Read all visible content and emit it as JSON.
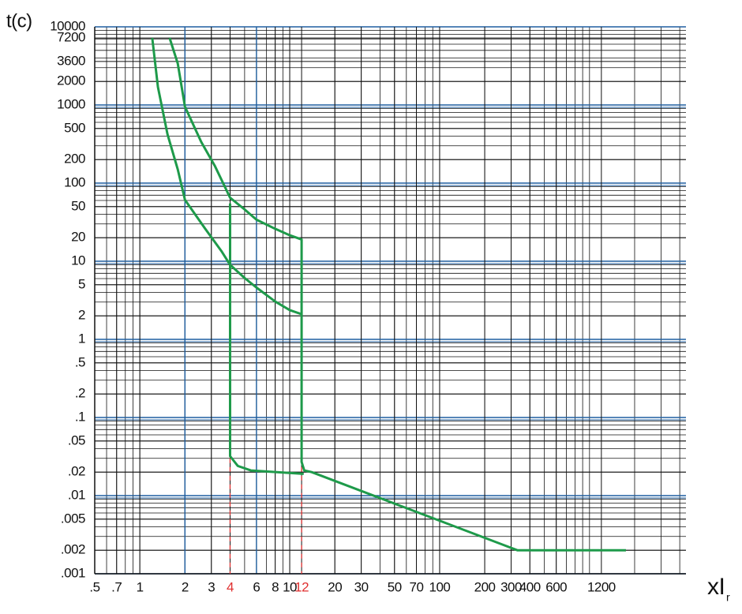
{
  "chart_data": {
    "type": "line",
    "y_label": "t(c)",
    "x_label": "xI",
    "x_label_sub": "r",
    "x_log": true,
    "y_log": true,
    "grid": true,
    "xlim": [
      0.5,
      4400
    ],
    "ylim": [
      0.001,
      10000
    ],
    "xticks": [
      {
        "value": 0.5,
        "label": ".5"
      },
      {
        "value": 0.7,
        "label": ".7"
      },
      1,
      2,
      3,
      4,
      6,
      8,
      10,
      12,
      20,
      30,
      50,
      70,
      100,
      200,
      300,
      400,
      600,
      1200
    ],
    "yticks": [
      10000,
      7200,
      3600,
      2000,
      1000,
      500,
      200,
      100,
      50,
      20,
      10,
      5,
      2,
      1,
      {
        "value": 0.5,
        "label": ".5"
      },
      {
        "value": 0.2,
        "label": ".2"
      },
      {
        "value": 0.1,
        "label": ".1"
      },
      {
        "value": 0.05,
        "label": ".05"
      },
      {
        "value": 0.02,
        "label": ".02"
      },
      {
        "value": 0.01,
        "label": ".01"
      },
      {
        "value": 0.005,
        "label": ".005"
      },
      {
        "value": 0.002,
        "label": ".002"
      },
      {
        "value": 0.001,
        "label": ".001"
      }
    ],
    "x_blue_lines": [
      2,
      6
    ],
    "grid_color": "#111111",
    "major_grid_color": "#1f5fa0",
    "ref_lines": {
      "x": [
        4,
        12
      ],
      "from": 0.03,
      "color": "#e03030"
    },
    "series": [
      {
        "color": "#1e9a4a",
        "x": [
          1.58,
          1.79,
          2,
          2.57,
          3.16,
          4,
          5,
          6,
          8,
          10,
          12,
          12,
          12.5,
          14,
          330,
          1750
        ],
        "values": [
          7200,
          3400,
          950,
          335,
          167,
          65,
          46,
          34,
          26,
          21.5,
          19,
          0.027,
          0.021,
          0.02,
          0.002,
          0.002
        ]
      },
      {
        "color": "#1e9a4a",
        "x": [
          1.21,
          1.32,
          1.53,
          1.79,
          2,
          2.73,
          3.5,
          4,
          5,
          6,
          8,
          10,
          12
        ],
        "values": [
          7200,
          1700,
          420,
          150,
          61,
          26,
          13.5,
          9,
          6.1,
          4.6,
          3.05,
          2.37,
          2.1
        ]
      },
      {
        "color": "#1e9a4a",
        "x": [
          4,
          4,
          4.5,
          5.5,
          12.4
        ],
        "values": [
          55,
          0.032,
          0.024,
          0.021,
          0.019
        ]
      }
    ]
  }
}
